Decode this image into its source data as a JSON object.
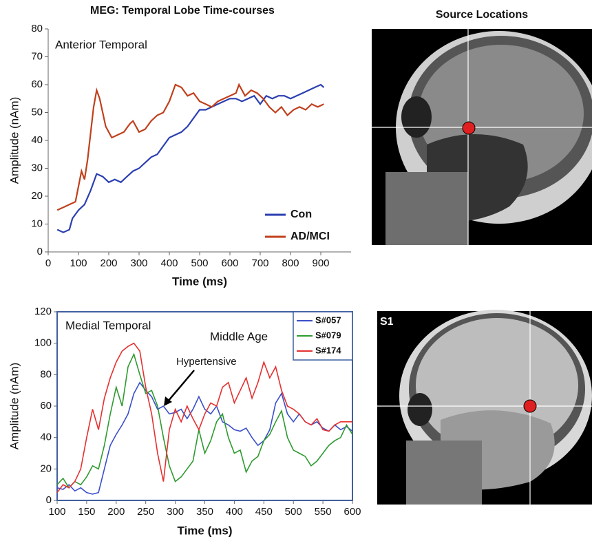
{
  "title": "MEG:  Temporal Lobe Time-courses",
  "images": {
    "title": "Source Locations",
    "bottom_label": "S1"
  },
  "chart_data": [
    {
      "type": "line",
      "annotation": "Anterior Temporal",
      "xlabel": "Time (ms)",
      "ylabel": "Amplitude (nAm)",
      "xlim": [
        0,
        1000
      ],
      "xticks": [
        0,
        100,
        200,
        300,
        400,
        500,
        600,
        700,
        800,
        900
      ],
      "ylim": [
        0,
        80
      ],
      "yticks": [
        0,
        10,
        20,
        30,
        40,
        50,
        60,
        70,
        80
      ],
      "legend": "lower right",
      "frame": false,
      "series": [
        {
          "name": "Con",
          "color": "#2b3fb0",
          "x": [
            30,
            50,
            70,
            80,
            100,
            120,
            140,
            160,
            180,
            200,
            220,
            240,
            260,
            280,
            300,
            320,
            340,
            360,
            380,
            400,
            420,
            440,
            460,
            480,
            500,
            520,
            540,
            560,
            580,
            600,
            620,
            640,
            660,
            680,
            700,
            720,
            740,
            760,
            780,
            800,
            820,
            840,
            860,
            880,
            900,
            910
          ],
          "values": [
            8,
            7,
            8,
            12,
            15,
            17,
            22,
            28,
            27,
            25,
            26,
            25,
            27,
            29,
            30,
            32,
            34,
            35,
            38,
            41,
            42,
            43,
            45,
            48,
            51,
            51,
            52,
            53,
            54,
            55,
            55,
            54,
            55,
            56,
            53,
            56,
            55,
            56,
            56,
            55,
            56,
            57,
            58,
            59,
            60,
            59
          ]
        },
        {
          "name": "AD/MCI",
          "color": "#c0401c",
          "x": [
            30,
            50,
            70,
            90,
            110,
            120,
            130,
            150,
            160,
            170,
            190,
            210,
            230,
            250,
            270,
            280,
            300,
            320,
            340,
            360,
            380,
            400,
            420,
            440,
            460,
            480,
            500,
            520,
            540,
            560,
            580,
            600,
            620,
            630,
            650,
            670,
            690,
            710,
            730,
            750,
            770,
            790,
            810,
            830,
            850,
            870,
            890,
            910
          ],
          "values": [
            15,
            16,
            17,
            18,
            29,
            26,
            33,
            52,
            58,
            55,
            45,
            41,
            42,
            43,
            46,
            47,
            43,
            44,
            47,
            49,
            50,
            54,
            60,
            59,
            56,
            57,
            54,
            53,
            52,
            54,
            55,
            56,
            57,
            60,
            56,
            58,
            57,
            55,
            52,
            50,
            52,
            49,
            51,
            52,
            51,
            53,
            52,
            53
          ]
        }
      ]
    },
    {
      "type": "line",
      "annotation": "Medial Temporal",
      "subtitle": "Middle Age",
      "arrow_label": "Hypertensive",
      "xlabel": "Time (ms)",
      "ylabel": "Amplitude (nAm)",
      "xlim": [
        100,
        600
      ],
      "xticks": [
        100,
        150,
        200,
        250,
        300,
        350,
        400,
        450,
        500,
        550,
        600
      ],
      "ylim": [
        0,
        120
      ],
      "yticks": [
        0,
        20,
        40,
        60,
        80,
        100,
        120
      ],
      "legend": "upper right",
      "frame": true,
      "series": [
        {
          "name": "S#057",
          "color": "#3a4fc8",
          "x": [
            100,
            110,
            120,
            130,
            140,
            150,
            160,
            170,
            180,
            190,
            200,
            210,
            220,
            230,
            240,
            250,
            260,
            270,
            280,
            290,
            300,
            310,
            320,
            330,
            340,
            350,
            360,
            370,
            380,
            390,
            400,
            410,
            420,
            430,
            440,
            450,
            460,
            470,
            480,
            490,
            500,
            510,
            520,
            530,
            540,
            550,
            560,
            570,
            580,
            590,
            600
          ],
          "values": [
            8,
            7,
            10,
            6,
            8,
            5,
            4,
            5,
            20,
            35,
            42,
            48,
            55,
            68,
            75,
            70,
            66,
            58,
            60,
            55,
            56,
            58,
            52,
            58,
            66,
            58,
            55,
            60,
            50,
            48,
            45,
            44,
            46,
            40,
            35,
            38,
            45,
            62,
            68,
            55,
            50,
            55,
            50,
            48,
            50,
            46,
            44,
            48,
            45,
            47,
            44
          ]
        },
        {
          "name": "S#079",
          "color": "#2f9a2f",
          "x": [
            100,
            110,
            120,
            130,
            140,
            150,
            160,
            170,
            180,
            190,
            200,
            210,
            220,
            230,
            240,
            250,
            260,
            270,
            280,
            290,
            300,
            310,
            320,
            330,
            340,
            350,
            360,
            370,
            380,
            390,
            400,
            410,
            420,
            430,
            440,
            450,
            460,
            470,
            480,
            490,
            500,
            510,
            520,
            530,
            540,
            550,
            560,
            570,
            580,
            590,
            600
          ],
          "values": [
            10,
            14,
            8,
            12,
            10,
            15,
            22,
            20,
            35,
            55,
            72,
            60,
            85,
            93,
            80,
            68,
            70,
            60,
            40,
            22,
            12,
            15,
            20,
            25,
            45,
            30,
            38,
            50,
            55,
            40,
            30,
            32,
            18,
            25,
            28,
            38,
            42,
            50,
            57,
            40,
            32,
            30,
            28,
            22,
            25,
            30,
            35,
            38,
            40,
            48,
            42
          ]
        },
        {
          "name": "S#174",
          "color": "#e53030",
          "x": [
            100,
            110,
            120,
            130,
            140,
            150,
            160,
            170,
            180,
            190,
            200,
            210,
            220,
            230,
            240,
            250,
            260,
            270,
            280,
            290,
            300,
            310,
            320,
            330,
            340,
            350,
            360,
            370,
            380,
            390,
            400,
            410,
            420,
            430,
            440,
            450,
            460,
            470,
            480,
            490,
            500,
            510,
            520,
            530,
            540,
            550,
            560,
            570,
            580,
            590,
            600
          ],
          "values": [
            5,
            10,
            8,
            12,
            20,
            40,
            58,
            45,
            65,
            78,
            88,
            95,
            98,
            100,
            95,
            72,
            55,
            30,
            12,
            45,
            58,
            50,
            60,
            52,
            45,
            55,
            62,
            60,
            72,
            75,
            62,
            70,
            78,
            65,
            75,
            88,
            78,
            85,
            70,
            60,
            58,
            55,
            50,
            48,
            52,
            45,
            44,
            48,
            50,
            50,
            50
          ]
        }
      ]
    }
  ]
}
